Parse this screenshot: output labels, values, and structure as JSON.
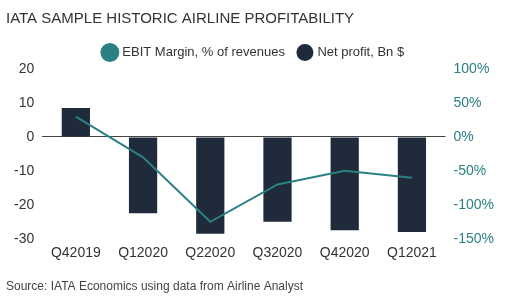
{
  "chart_data": {
    "type": "bar",
    "title": "IATA SAMPLE HISTORIC AIRLINE PROFITABILITY",
    "source": "Source: IATA Economics using data from Airline Analyst",
    "categories": [
      "Q42019",
      "Q12020",
      "Q22020",
      "Q32020",
      "Q42020",
      "Q12021"
    ],
    "series": [
      {
        "name": "Net profit, Bn $",
        "type": "bar",
        "color": "#1f2a3a",
        "values": [
          8.5,
          -22.5,
          -28.5,
          -25,
          -27.5,
          -28
        ]
      },
      {
        "name": "EBIT Margin, % of revenues",
        "type": "line",
        "axis": "y2",
        "color": "#2b8083",
        "marker": "none",
        "line_style": "solid",
        "values": [
          30,
          -30,
          -125,
          -70,
          -50,
          -60
        ]
      }
    ],
    "ylim": [
      -30,
      20
    ],
    "yticks": [
      -30,
      -20,
      -10,
      0,
      10,
      20
    ],
    "y2lim": [
      -150,
      100
    ],
    "y2ticks": [
      {
        "value": -150,
        "label": "-150%"
      },
      {
        "value": -100,
        "label": "-100%"
      },
      {
        "value": -50,
        "label": "-50%"
      },
      {
        "value": 0,
        "label": "0%"
      },
      {
        "value": 50,
        "label": "50%"
      },
      {
        "value": 100,
        "label": "100%"
      }
    ],
    "grid": false,
    "legend": "top"
  }
}
